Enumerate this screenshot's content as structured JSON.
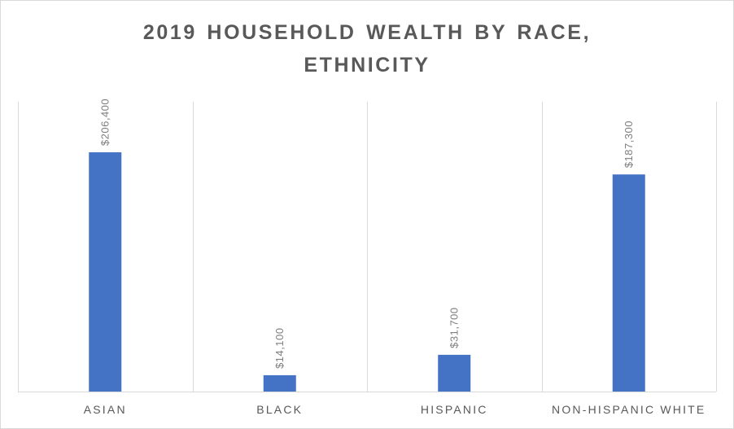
{
  "chart_data": {
    "type": "bar",
    "title_lines": [
      "2019 HOUSEHOLD WEALTH BY RACE,",
      "ETHNICITY"
    ],
    "categories": [
      "ASIAN",
      "BLACK",
      "HISPANIC",
      "NON-HISPANIC WHITE"
    ],
    "values": [
      206400,
      14100,
      31700,
      187300
    ],
    "data_labels": [
      "$206,400",
      "$14,100",
      "$31,700",
      "$187,300"
    ],
    "ylim": [
      0,
      250000
    ],
    "bar_color": "#4472c4",
    "grid": "vertical category separators",
    "legend": "none"
  }
}
